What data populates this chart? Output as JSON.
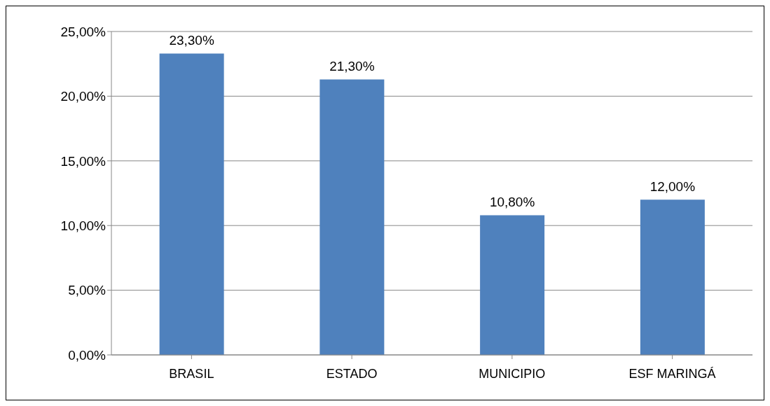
{
  "chart_data": {
    "type": "bar",
    "categories": [
      "BRASIL",
      "ESTADO",
      "MUNICIPIO",
      "ESF MARINGÁ"
    ],
    "values": [
      23.3,
      21.3,
      10.8,
      12.0
    ],
    "value_labels": [
      "23,30%",
      "21,30%",
      "10,80%",
      "12,00%"
    ],
    "color": "#4f81bd",
    "ylim": [
      0,
      25
    ],
    "yticks": [
      {
        "value": 0,
        "label": "0,00%"
      },
      {
        "value": 5,
        "label": "5,00%"
      },
      {
        "value": 10,
        "label": "10,00%"
      },
      {
        "value": 15,
        "label": "15,00%"
      },
      {
        "value": 20,
        "label": "20,00%"
      },
      {
        "value": 25,
        "label": "25,00%"
      }
    ],
    "grid": "y",
    "legend": false
  }
}
